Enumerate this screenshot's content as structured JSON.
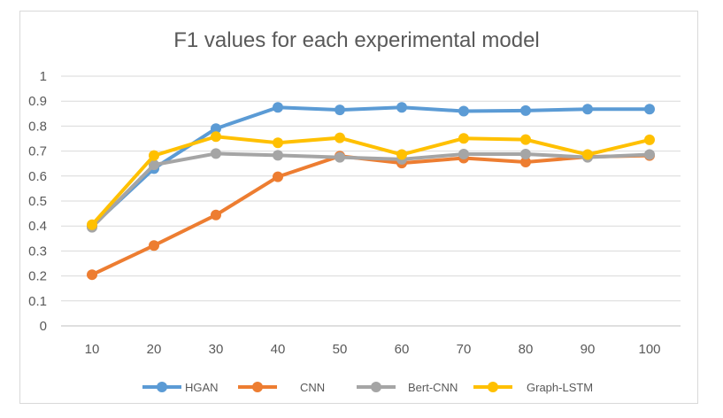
{
  "chart_data": {
    "type": "line",
    "title": "F1 values for each experimental model",
    "xlabel": "",
    "ylabel": "",
    "x": [
      "10",
      "20",
      "30",
      "40",
      "50",
      "60",
      "70",
      "80",
      "90",
      "100"
    ],
    "ylim": [
      0,
      1
    ],
    "yticks": [
      "0",
      "0.1",
      "0.2",
      "0.3",
      "0.4",
      "0.5",
      "0.6",
      "0.7",
      "0.8",
      "0.9",
      "1"
    ],
    "grid": true,
    "legend_position": "bottom",
    "series": [
      {
        "name": "HGAN",
        "color": "#5b9bd5",
        "values": [
          0.4,
          0.63,
          0.79,
          0.875,
          0.865,
          0.875,
          0.86,
          0.862,
          0.868,
          0.868
        ]
      },
      {
        "name": "CNN",
        "color": "#ed7d31",
        "values": [
          0.205,
          0.322,
          0.444,
          0.597,
          0.68,
          0.652,
          0.672,
          0.656,
          0.677,
          0.682
        ]
      },
      {
        "name": "Bert-CNN",
        "color": "#a5a5a5",
        "values": [
          0.395,
          0.645,
          0.69,
          0.683,
          0.675,
          0.667,
          0.688,
          0.688,
          0.675,
          0.686
        ]
      },
      {
        "name": "Graph-LSTM",
        "color": "#ffc000",
        "values": [
          0.405,
          0.682,
          0.758,
          0.733,
          0.753,
          0.686,
          0.751,
          0.746,
          0.686,
          0.745
        ]
      }
    ]
  }
}
